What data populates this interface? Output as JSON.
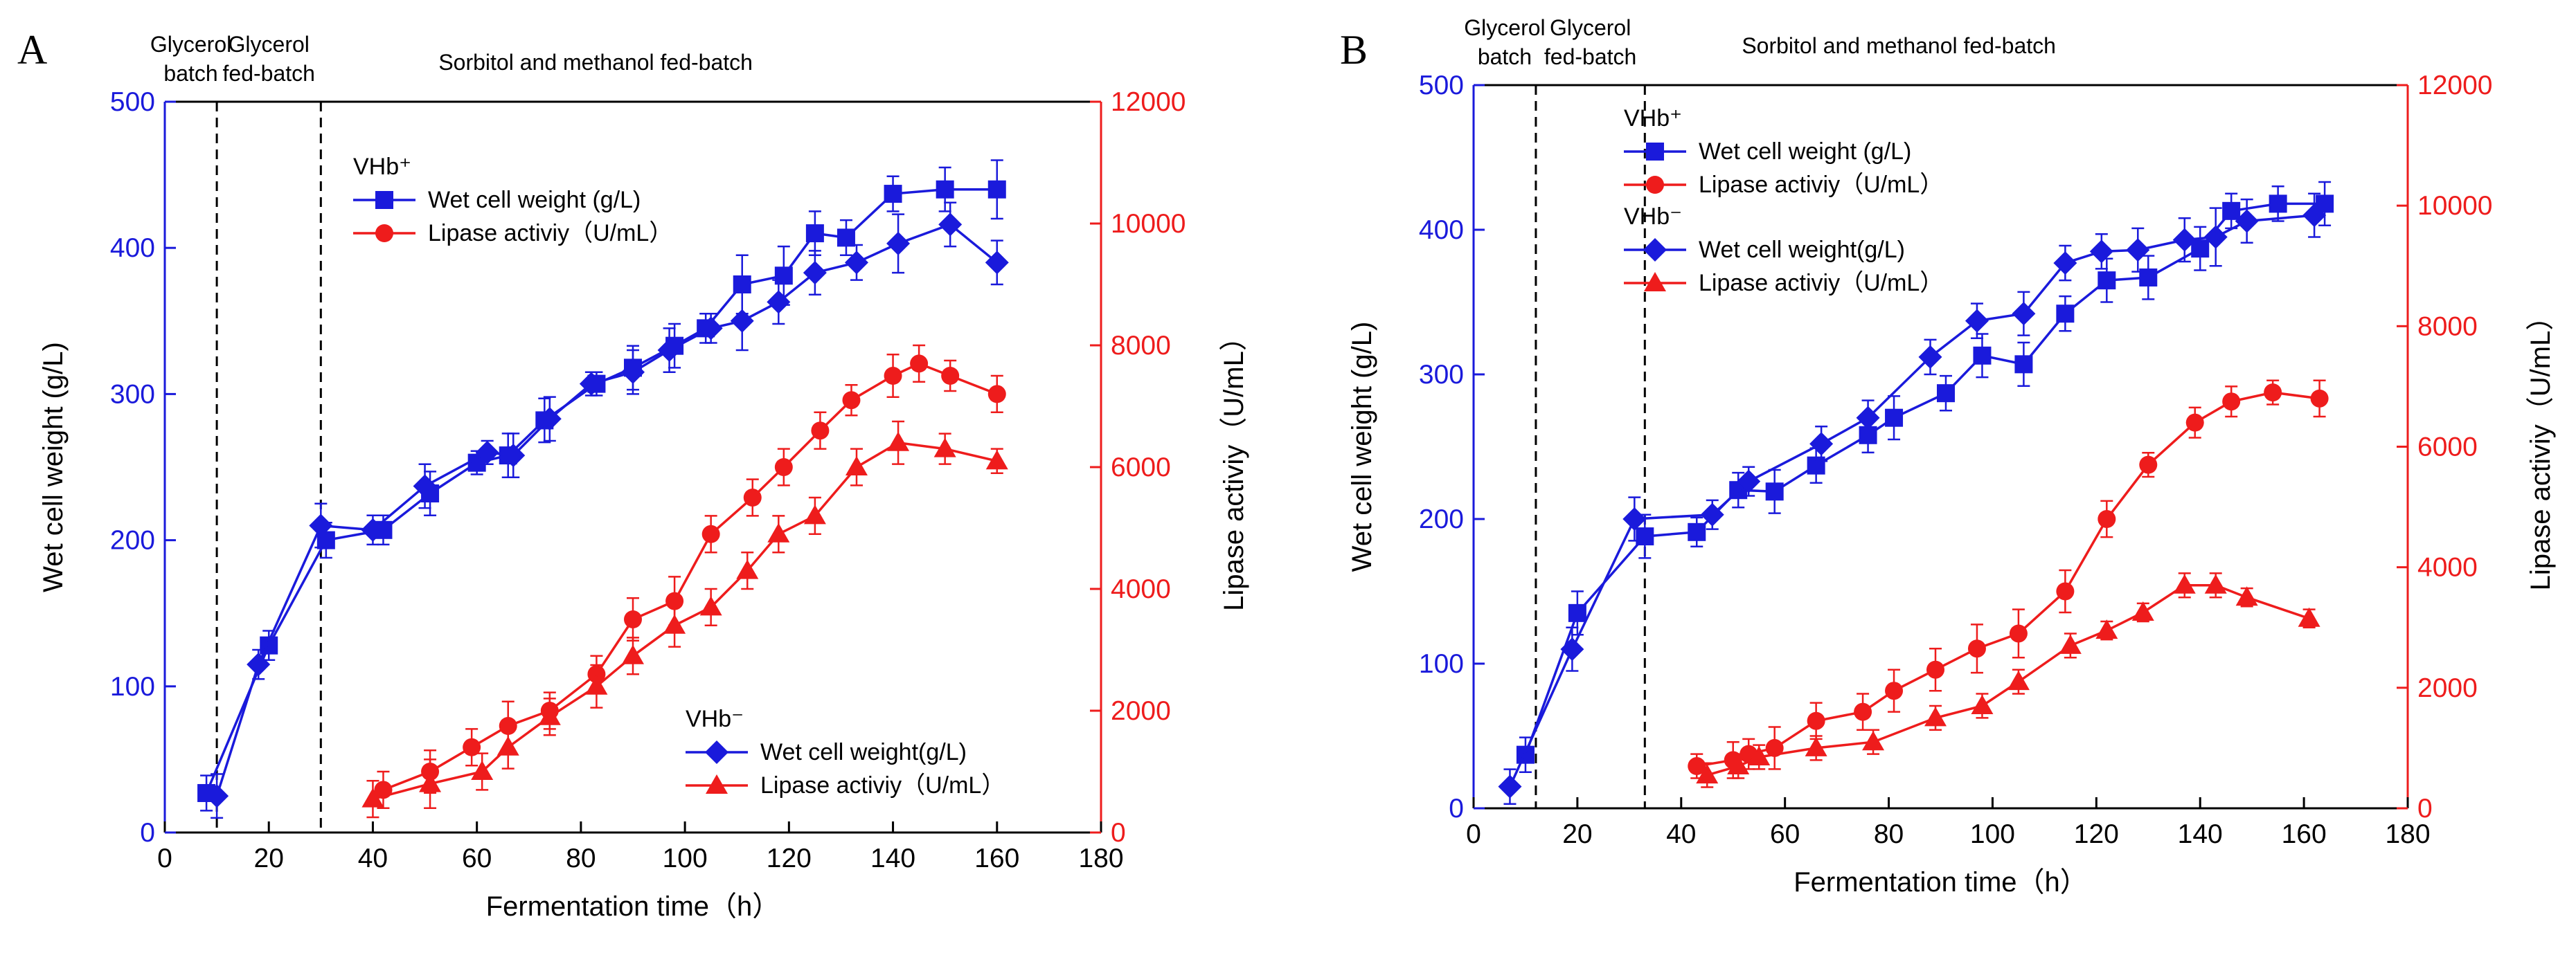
{
  "colors": {
    "blue": "#1a1adb",
    "red": "#ee1c1c",
    "black": "#000000"
  },
  "x_axis_title": "Fermentation time（h）",
  "chart_data": [
    {
      "id": "A",
      "label": "A",
      "type": "line",
      "xlim": [
        0,
        180
      ],
      "xticks": [
        0,
        20,
        40,
        60,
        80,
        100,
        120,
        140,
        160,
        180
      ],
      "y_left": {
        "label": "Wet cell weight (g/L)",
        "lim": [
          0,
          500
        ],
        "ticks": [
          0,
          100,
          200,
          300,
          400,
          500
        ]
      },
      "y_right": {
        "label": "Lipase activiy（U/mL）",
        "lim": [
          0,
          12000
        ],
        "ticks": [
          0,
          2000,
          4000,
          6000,
          8000,
          10000,
          12000
        ]
      },
      "phases": [
        {
          "label": [
            "Glycerol",
            "batch"
          ],
          "end_x": 10
        },
        {
          "label": [
            "Glycerol",
            "fed-batch"
          ],
          "end_x": 30
        },
        {
          "label": [
            "Sorbitol and methanol fed-batch"
          ],
          "end_x": null
        }
      ],
      "legend_groups": [
        {
          "header": "VHb⁺",
          "position": "upper-middle",
          "items": [
            0,
            1
          ]
        },
        {
          "header": "VHb⁻",
          "position": "lower-right",
          "items": [
            2,
            3
          ]
        }
      ],
      "series": [
        {
          "name": "Wet cell weight (g/L)",
          "axis": "left",
          "marker": "square",
          "color": "#1a1adb",
          "x": [
            8,
            20,
            31,
            42,
            51,
            60,
            66,
            73,
            83,
            90,
            98,
            104,
            111,
            119,
            125,
            131,
            140,
            150,
            160
          ],
          "y": [
            27,
            128,
            200,
            207,
            232,
            253,
            258,
            282,
            307,
            318,
            333,
            345,
            375,
            381,
            410,
            407,
            437,
            440,
            440
          ],
          "err": [
            12,
            10,
            12,
            10,
            15,
            8,
            15,
            15,
            8,
            15,
            15,
            10,
            20,
            20,
            15,
            12,
            12,
            15,
            20
          ]
        },
        {
          "name": "Lipase activiy（U/mL）",
          "axis": "right",
          "marker": "circle",
          "color": "#ee1c1c",
          "x": [
            42,
            51,
            59,
            66,
            74,
            83,
            90,
            98,
            105,
            113,
            119,
            126,
            132,
            140,
            145,
            151,
            160
          ],
          "y": [
            700,
            1000,
            1400,
            1750,
            2000,
            2600,
            3500,
            3800,
            4900,
            5500,
            6000,
            6600,
            7100,
            7500,
            7700,
            7500,
            7200
          ],
          "err": [
            300,
            350,
            300,
            400,
            300,
            300,
            350,
            400,
            300,
            300,
            300,
            300,
            250,
            350,
            300,
            250,
            300
          ]
        },
        {
          "name": "Wet cell weight(g/L)",
          "axis": "left",
          "marker": "diamond",
          "color": "#1a1adb",
          "x": [
            10,
            18,
            30,
            40,
            50,
            62,
            67,
            74,
            82,
            90,
            97,
            105,
            111,
            118,
            125,
            133,
            141,
            151,
            160
          ],
          "y": [
            25,
            115,
            210,
            207,
            237,
            260,
            258,
            283,
            307,
            315,
            330,
            345,
            350,
            363,
            383,
            390,
            403,
            416,
            390
          ],
          "err": [
            15,
            10,
            15,
            10,
            15,
            8,
            15,
            15,
            8,
            15,
            15,
            10,
            20,
            15,
            15,
            12,
            20,
            15,
            15
          ]
        },
        {
          "name": "Lipase activiy（U/mL）",
          "axis": "right",
          "marker": "triangle",
          "color": "#ee1c1c",
          "x": [
            40,
            51,
            61,
            66,
            74,
            83,
            90,
            98,
            105,
            112,
            118,
            125,
            133,
            141,
            150,
            160
          ],
          "y": [
            550,
            800,
            1000,
            1400,
            1900,
            2400,
            2900,
            3400,
            3700,
            4300,
            4900,
            5200,
            6000,
            6400,
            6300,
            6100
          ],
          "err": [
            300,
            400,
            300,
            350,
            300,
            350,
            300,
            350,
            300,
            300,
            300,
            300,
            300,
            350,
            250,
            200
          ]
        }
      ]
    },
    {
      "id": "B",
      "label": "B",
      "type": "line",
      "xlim": [
        0,
        180
      ],
      "xticks": [
        0,
        20,
        40,
        60,
        80,
        100,
        120,
        140,
        160,
        180
      ],
      "y_left": {
        "label": "Wet cell weight (g/L)",
        "lim": [
          0,
          500
        ],
        "ticks": [
          0,
          100,
          200,
          300,
          400,
          500
        ]
      },
      "y_right": {
        "label": "Lipase activiy（U/mL）",
        "lim": [
          0,
          12000
        ],
        "ticks": [
          0,
          2000,
          4000,
          6000,
          8000,
          10000,
          12000
        ]
      },
      "phases": [
        {
          "label": [
            "Glycerol",
            "batch"
          ],
          "end_x": 12
        },
        {
          "label": [
            "Glycerol",
            "fed-batch"
          ],
          "end_x": 33
        },
        {
          "label": [
            "Sorbitol and methanol fed-batch"
          ],
          "end_x": null
        }
      ],
      "legend_groups": [
        {
          "header": "VHb⁺",
          "position": "upper-left",
          "items": [
            0,
            1
          ]
        },
        {
          "header": "VHb⁻",
          "position": "upper-left-2",
          "items": [
            2,
            3
          ]
        }
      ],
      "series": [
        {
          "name": "Wet cell weight (g/L)",
          "axis": "left",
          "marker": "square",
          "color": "#1a1adb",
          "x": [
            10,
            20,
            33,
            43,
            51,
            58,
            66,
            76,
            81,
            91,
            98,
            106,
            114,
            122,
            130,
            140,
            146,
            155,
            164
          ],
          "y": [
            37,
            135,
            188,
            191,
            220,
            219,
            237,
            258,
            270,
            287,
            313,
            307,
            342,
            365,
            367,
            387,
            413,
            418,
            418
          ],
          "err": [
            12,
            15,
            15,
            10,
            12,
            15,
            12,
            12,
            15,
            12,
            15,
            15,
            12,
            15,
            15,
            15,
            12,
            12,
            15
          ]
        },
        {
          "name": "Lipase activiy（U/mL）",
          "axis": "right",
          "marker": "circle",
          "color": "#ee1c1c",
          "x": [
            43,
            50,
            53,
            58,
            66,
            75,
            81,
            89,
            97,
            105,
            114,
            122,
            130,
            139,
            146,
            154,
            163
          ],
          "y": [
            700,
            800,
            900,
            1000,
            1450,
            1600,
            1950,
            2300,
            2650,
            2900,
            3600,
            4800,
            5700,
            6400,
            6750,
            6900,
            6800
          ],
          "err": [
            200,
            300,
            250,
            350,
            300,
            300,
            350,
            350,
            400,
            400,
            350,
            300,
            200,
            250,
            250,
            200,
            300
          ]
        },
        {
          "name": "Wet cell weight(g/L)",
          "axis": "left",
          "marker": "diamond",
          "color": "#1a1adb",
          "x": [
            7,
            19,
            31,
            46,
            53,
            67,
            76,
            88,
            97,
            106,
            114,
            121,
            128,
            137,
            143,
            149,
            162
          ],
          "y": [
            15,
            110,
            200,
            203,
            226,
            252,
            270,
            312,
            337,
            342,
            377,
            385,
            386,
            393,
            395,
            406,
            410
          ],
          "err": [
            12,
            15,
            15,
            10,
            10,
            12,
            12,
            12,
            12,
            15,
            12,
            12,
            15,
            15,
            20,
            15,
            15
          ]
        },
        {
          "name": "Lipase activiy（U/mL）",
          "axis": "right",
          "marker": "triangle",
          "color": "#ee1c1c",
          "x": [
            45,
            51,
            55,
            66,
            77,
            89,
            98,
            105,
            115,
            122,
            129,
            137,
            143,
            149,
            161
          ],
          "y": [
            550,
            700,
            850,
            1000,
            1100,
            1500,
            1700,
            2100,
            2700,
            2950,
            3250,
            3700,
            3700,
            3500,
            3150
          ],
          "err": [
            200,
            200,
            200,
            200,
            200,
            200,
            200,
            200,
            200,
            150,
            150,
            200,
            200,
            150,
            150
          ]
        }
      ]
    }
  ]
}
